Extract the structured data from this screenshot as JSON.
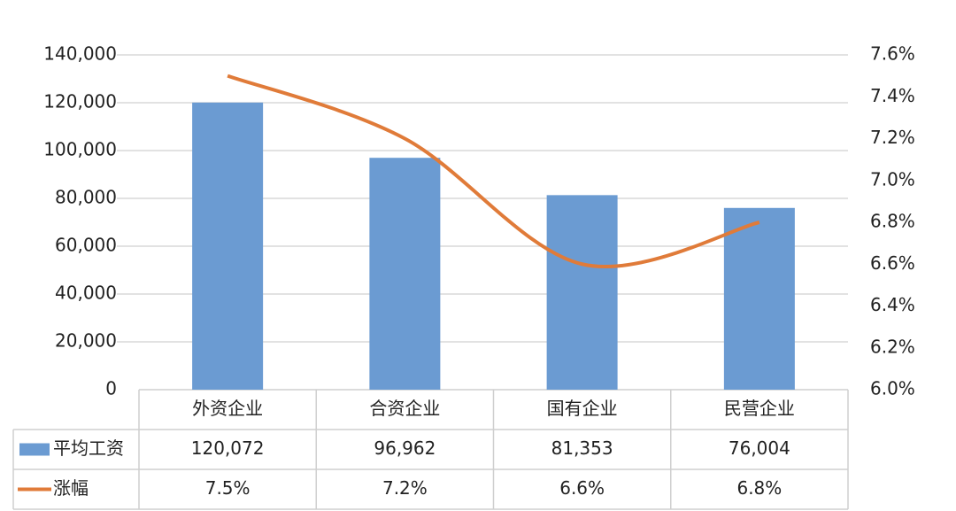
{
  "chart_data": {
    "type": "bar-line",
    "categories": [
      "外资企业",
      "合资企业",
      "国有企业",
      "民营企业"
    ],
    "series": [
      {
        "name": "平均工资",
        "color": "#6b9bd2",
        "type": "bar",
        "values": [
          120072,
          96962,
          81353,
          76004
        ],
        "value_labels": [
          "120,072",
          "96,962",
          "81,353",
          "76,004"
        ]
      },
      {
        "name": "涨幅",
        "color": "#e07b39",
        "type": "line",
        "axis": "y2",
        "values": [
          7.5,
          7.2,
          6.6,
          6.8
        ],
        "value_labels": [
          "7.5%",
          "7.2%",
          "6.6%",
          "6.8%"
        ]
      }
    ],
    "ylim": [
      0,
      140000
    ],
    "yticks": [
      0,
      {
        "value": 20000,
        "label": "20,000"
      },
      {
        "value": 40000,
        "label": "40,000"
      },
      {
        "value": 60000,
        "label": "60,000"
      },
      {
        "value": 80000,
        "label": "80,000"
      },
      {
        "value": 100000,
        "label": "100,000"
      },
      {
        "value": 120000,
        "label": "120,000"
      },
      {
        "value": 140000,
        "label": "140,000"
      }
    ],
    "y2lim": [
      6.0,
      7.6
    ],
    "y2ticks": [
      {
        "value": 6.0,
        "label": "6.0%"
      },
      {
        "value": 6.2,
        "label": "6.2%"
      },
      {
        "value": 6.4,
        "label": "6.4%"
      },
      {
        "value": 6.6,
        "label": "6.6%"
      },
      {
        "value": 6.8,
        "label": "6.8%"
      },
      {
        "value": 7.0,
        "label": "7.0%"
      },
      {
        "value": 7.2,
        "label": "7.2%"
      },
      {
        "value": 7.4,
        "label": "7.4%"
      },
      {
        "value": 7.6,
        "label": "7.6%"
      }
    ],
    "grid": true,
    "data_table": true
  }
}
